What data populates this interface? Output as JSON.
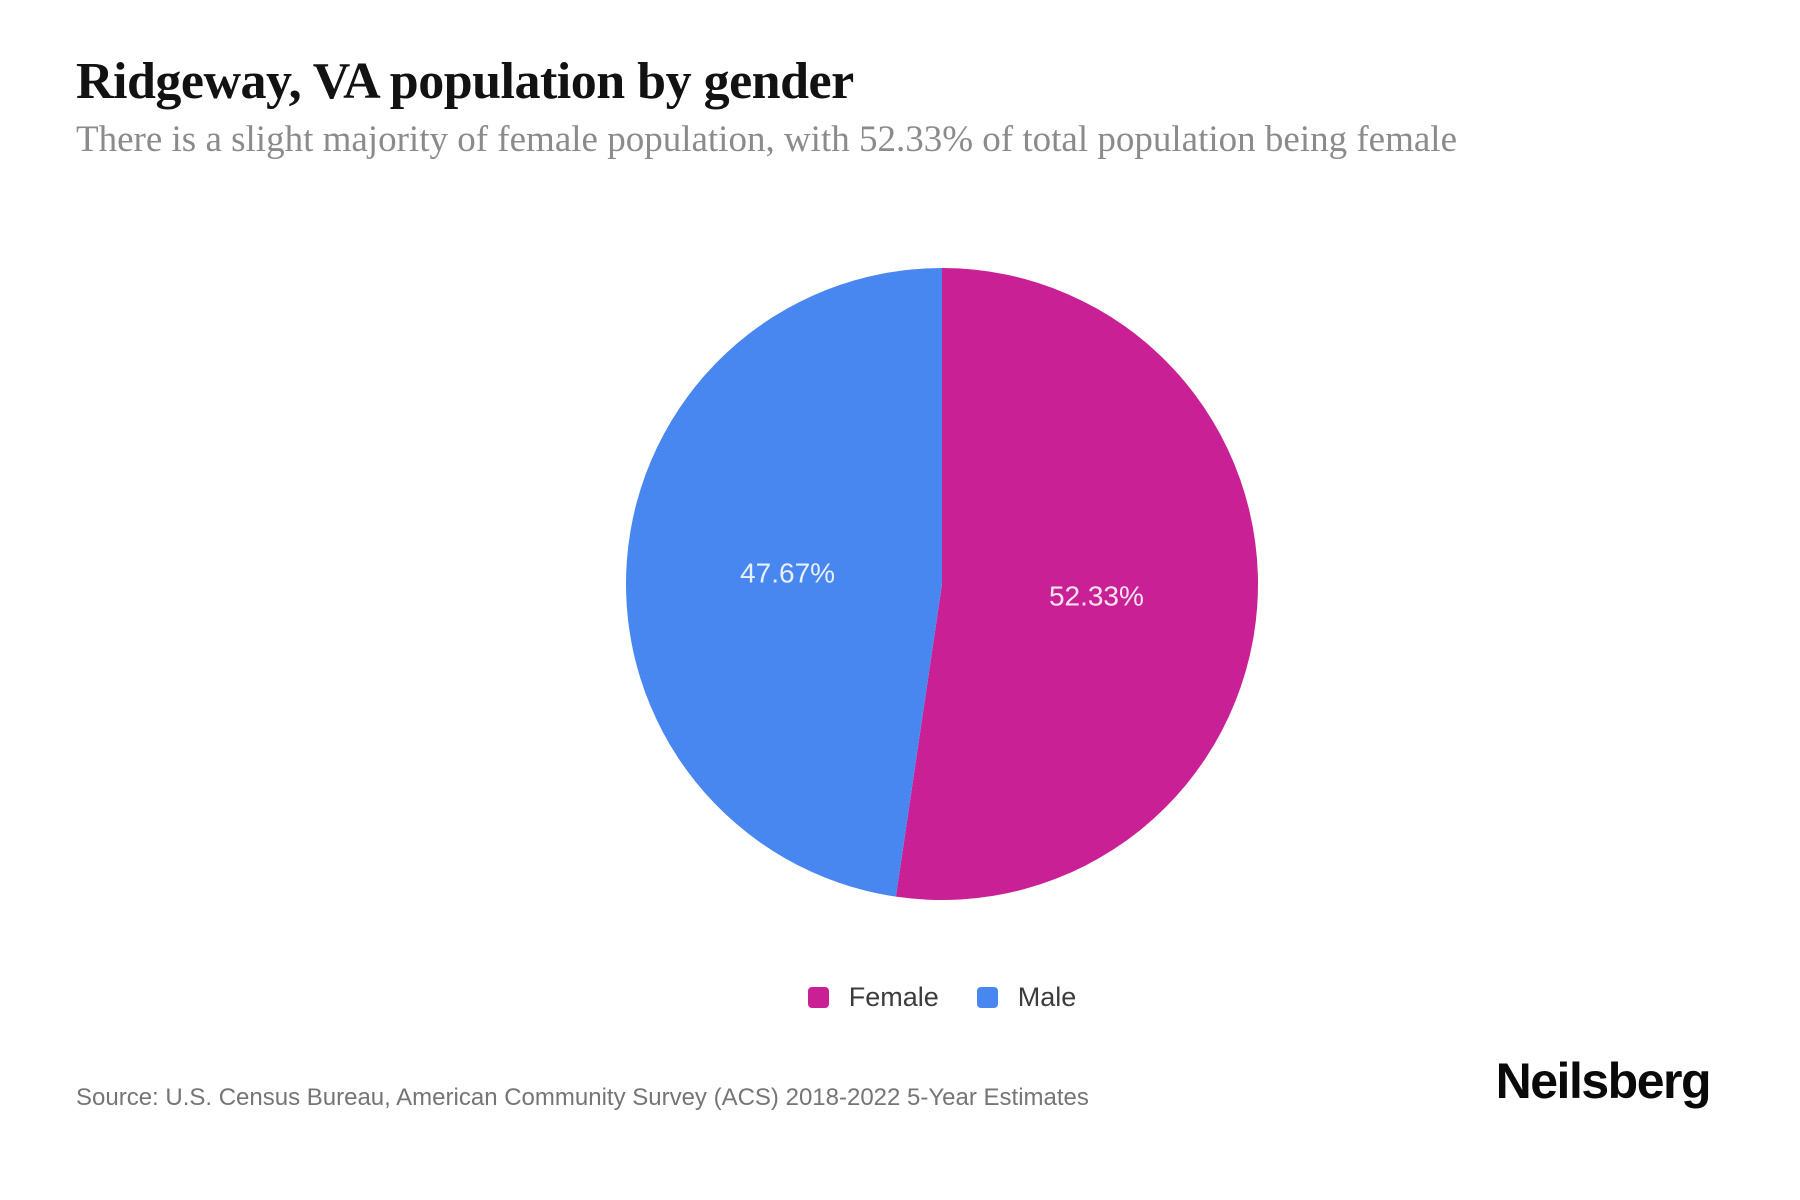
{
  "header": {
    "title": "Ridgeway, VA population by gender",
    "subtitle": "There is a slight majority of female population, with 52.33% of total population being female"
  },
  "chart_data": {
    "type": "pie",
    "title": "Ridgeway, VA population by gender",
    "categories": [
      "Female",
      "Male"
    ],
    "values": [
      52.33,
      47.67
    ],
    "unit": "percent",
    "slice_labels": [
      "52.33%",
      "47.67%"
    ],
    "colors": [
      "#CA2096",
      "#4887F0"
    ],
    "start_angle_deg": 0,
    "direction": "clockwise",
    "label_distance_ratio": 0.49,
    "label_color": "rgba(255,255,255,0.88)",
    "legend_position": "bottom"
  },
  "legend": {
    "items": [
      {
        "label": "Female",
        "color": "#CA2096"
      },
      {
        "label": "Male",
        "color": "#4887F0"
      }
    ]
  },
  "footer": {
    "source": "Source: U.S. Census Bureau, American Community Survey (ACS) 2018-2022 5-Year Estimates",
    "brand": "Neilsberg"
  }
}
